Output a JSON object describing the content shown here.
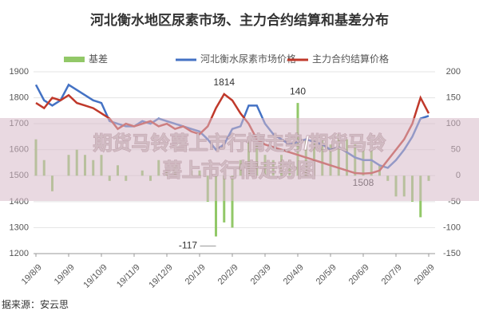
{
  "chart_data": {
    "type": "bar-line",
    "title": "河北衡水地区尿素市场、主力合约结算和基差分布",
    "source": "据来源：安云思",
    "overlay": [
      "期货马铃薯上市行情走势/期货马铃",
      "薯上市行情走势图"
    ],
    "categories": [
      "19/8/9",
      null,
      null,
      null,
      "19/9/9",
      null,
      null,
      null,
      "19/10/9",
      null,
      null,
      null,
      "19/11/9",
      null,
      null,
      null,
      "19/12/9",
      null,
      null,
      null,
      "20/1/9",
      null,
      null,
      null,
      "20/2/9",
      null,
      null,
      null,
      "20/3/9",
      null,
      null,
      null,
      "20/4/9",
      null,
      null,
      null,
      "20/5/9",
      null,
      null,
      null,
      "20/6/9",
      null,
      null,
      null,
      "20/7/9",
      null,
      null,
      null,
      "20/8/9"
    ],
    "series": [
      {
        "name": "基差",
        "color": "#92c868",
        "axis": "y2",
        "values": [
          70,
          30,
          -30,
          0,
          40,
          50,
          40,
          30,
          40,
          -10,
          20,
          -10,
          0,
          10,
          -10,
          30,
          10,
          20,
          0,
          10,
          10,
          -50,
          -117,
          -90,
          -100,
          30,
          70,
          60,
          40,
          30,
          40,
          30,
          140,
          70,
          70,
          70,
          60,
          80,
          70,
          60,
          50,
          50,
          20,
          -10,
          -40,
          -40,
          -50,
          -80,
          -10
        ]
      },
      {
        "name": "河北衡水尿素市场价格",
        "color": "#4472c4",
        "values": [
          1850,
          1790,
          1770,
          1790,
          1850,
          1830,
          1810,
          1790,
          1780,
          1710,
          1700,
          1690,
          1690,
          1710,
          1700,
          1720,
          1710,
          1700,
          1690,
          1680,
          1670,
          1640,
          1600,
          1620,
          1680,
          1690,
          1770,
          1770,
          1700,
          1660,
          1640,
          1620,
          1630,
          1640,
          1630,
          1620,
          1600,
          1610,
          1590,
          1570,
          1560,
          1560,
          1540,
          1530,
          1560,
          1600,
          1650,
          1720,
          1730
        ]
      },
      {
        "name": "主力合约结算价格",
        "color": "#c0392b",
        "values": [
          1780,
          1760,
          1800,
          1790,
          1810,
          1780,
          1770,
          1760,
          1740,
          1720,
          1680,
          1700,
          1690,
          1700,
          1710,
          1690,
          1700,
          1680,
          1690,
          1670,
          1660,
          1690,
          1760,
          1814,
          1790,
          1740,
          1700,
          1640,
          1620,
          1610,
          1600,
          1590,
          1580,
          1570,
          1560,
          1550,
          1540,
          1530,
          1520,
          1510,
          1508,
          1510,
          1520,
          1560,
          1600,
          1640,
          1700,
          1800,
          1740
        ]
      }
    ],
    "annotations": [
      {
        "text": "1814",
        "series": 2,
        "index": 23
      },
      {
        "text": "140",
        "series": 0,
        "index": 32
      },
      {
        "text": "-117",
        "series": 0,
        "index": 22
      },
      {
        "text": "1508",
        "series": 2,
        "index": 40
      }
    ],
    "ylim": [
      1200,
      1900
    ],
    "yticks": [
      1200,
      1300,
      1400,
      1500,
      1600,
      1700,
      1800,
      1900
    ],
    "y2lim": [
      -150,
      200
    ],
    "y2ticks": [
      -150,
      -100,
      -50,
      0,
      50,
      100,
      150,
      200
    ],
    "grid": true
  }
}
